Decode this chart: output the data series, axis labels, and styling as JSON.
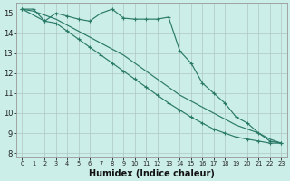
{
  "xlabel": "Humidex (Indice chaleur)",
  "background_color": "#cceee8",
  "grid_color": "#b0c8c4",
  "line_color": "#2a7a68",
  "ylim": [
    7.8,
    15.5
  ],
  "xlim": [
    -0.5,
    23.5
  ],
  "yticks": [
    8,
    9,
    10,
    11,
    12,
    13,
    14,
    15
  ],
  "xticks": [
    0,
    1,
    2,
    3,
    4,
    5,
    6,
    7,
    8,
    9,
    10,
    11,
    12,
    13,
    14,
    15,
    16,
    17,
    18,
    19,
    20,
    21,
    22,
    23
  ],
  "line1_x": [
    0,
    1,
    2,
    3,
    4,
    5,
    6,
    7,
    8,
    9,
    10,
    11,
    12,
    13,
    14,
    15,
    16,
    17,
    18,
    19,
    20,
    21,
    22,
    23
  ],
  "line1_y": [
    15.2,
    15.2,
    14.6,
    15.0,
    14.85,
    14.7,
    14.6,
    15.0,
    15.2,
    14.75,
    14.7,
    14.7,
    14.7,
    14.8,
    13.1,
    12.5,
    11.5,
    11.0,
    10.5,
    9.8,
    9.5,
    9.0,
    8.6,
    8.5
  ],
  "line2_x": [
    0,
    2,
    3,
    4,
    5,
    6,
    7,
    8,
    9,
    10,
    11,
    12,
    13,
    14,
    15,
    16,
    17,
    18,
    19,
    20,
    21,
    22,
    23
  ],
  "line2_y": [
    15.2,
    14.6,
    14.5,
    14.1,
    13.7,
    13.3,
    12.9,
    12.5,
    12.1,
    11.7,
    11.3,
    10.9,
    10.5,
    10.15,
    9.8,
    9.5,
    9.2,
    9.0,
    8.8,
    8.7,
    8.6,
    8.5,
    8.5
  ],
  "line3_x": [
    0,
    1,
    2,
    3,
    4,
    5,
    6,
    7,
    8,
    9,
    10,
    11,
    12,
    13,
    14,
    15,
    16,
    17,
    18,
    19,
    20,
    21,
    22,
    23
  ],
  "line3_y": [
    15.2,
    15.1,
    14.9,
    14.7,
    14.4,
    14.1,
    13.8,
    13.5,
    13.2,
    12.9,
    12.5,
    12.1,
    11.7,
    11.3,
    10.9,
    10.6,
    10.3,
    10.0,
    9.7,
    9.4,
    9.2,
    9.0,
    8.7,
    8.5
  ]
}
